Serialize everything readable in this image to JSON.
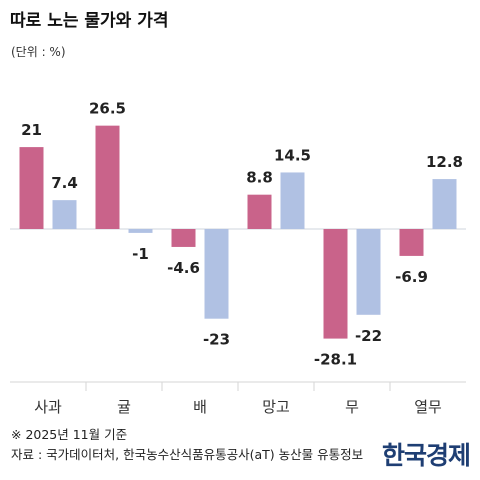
{
  "chart_data": {
    "type": "bar",
    "title": "따로 노는 물가와 가격",
    "unit_label": "(단위 : %)",
    "categories": [
      "사과",
      "귤",
      "배",
      "망고",
      "무",
      "열무"
    ],
    "series": [
      {
        "color": "#c9638a",
        "values": [
          21,
          26.5,
          -4.6,
          8.8,
          -28.1,
          -6.9
        ],
        "labels": [
          "21",
          "26.5",
          "-4.6",
          "8.8",
          "-28.1",
          "-6.9"
        ]
      },
      {
        "color": "#b0c1e3",
        "values": [
          7.4,
          -1,
          -23,
          14.5,
          -22,
          12.8
        ],
        "labels": [
          "7.4",
          "-1",
          "-23",
          "14.5",
          "-22",
          "12.8"
        ]
      }
    ],
    "ylim": [
      -30,
      30
    ],
    "grid": false,
    "legend": "none"
  },
  "footer": {
    "note": "※ 2025년 11월 기준",
    "source": "자료 : 국가데이터처, 한국농수산식품유통공사(aT) 농산물 유통정보",
    "logo": "한국경제"
  }
}
